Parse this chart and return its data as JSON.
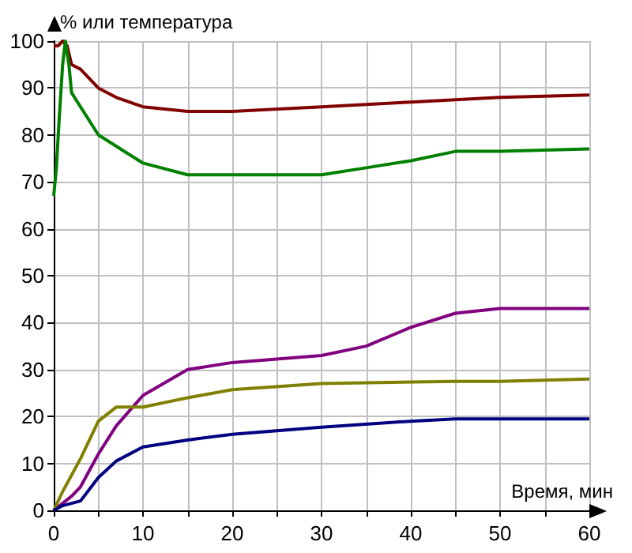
{
  "chart_data": {
    "type": "line",
    "xlabel": "Время, мин",
    "ylabel": "% или температура",
    "xlim": [
      0,
      60
    ],
    "ylim": [
      0,
      100
    ],
    "xticks": [
      0,
      {
        "value": 5,
        "label": null
      },
      10,
      {
        "value": 15,
        "label": null
      },
      20,
      {
        "value": 25,
        "label": null
      },
      30,
      {
        "value": 35,
        "label": null
      },
      40,
      {
        "value": 45,
        "label": null
      },
      50,
      {
        "value": 55,
        "label": null
      },
      60
    ],
    "yticks": [
      0,
      10,
      20,
      30,
      40,
      50,
      60,
      70,
      80,
      90,
      100
    ],
    "grid": true,
    "marker": "none",
    "line_style": "solid",
    "series": [
      {
        "color": "#800000",
        "x": [
          0,
          0.5,
          1,
          1.5,
          2,
          3,
          5,
          7,
          10,
          15,
          20,
          30,
          40,
          50,
          60
        ],
        "values": [
          99,
          99,
          100,
          99,
          95,
          94,
          90,
          88,
          86,
          85,
          85,
          86,
          87,
          88,
          88.5
        ]
      },
      {
        "color": "#008000",
        "x": [
          0,
          0.3,
          0.6,
          1,
          1.3,
          1.7,
          2,
          5,
          10,
          15,
          30,
          35,
          40,
          45,
          50,
          60
        ],
        "values": [
          67,
          73,
          83,
          95,
          100,
          95,
          89,
          80,
          74,
          71.5,
          71.5,
          73,
          74.5,
          76.5,
          76.5,
          77
        ]
      },
      {
        "color": "#800080",
        "x": [
          0,
          2,
          3,
          5,
          7,
          10,
          15,
          20,
          30,
          35,
          40,
          45,
          50,
          60
        ],
        "values": [
          0,
          3,
          5,
          12,
          18,
          24.5,
          30,
          31.5,
          33,
          35,
          39,
          42,
          43,
          43
        ]
      },
      {
        "color": "#808000",
        "x": [
          0,
          1,
          3,
          5,
          7,
          10,
          15,
          20,
          30,
          45,
          50,
          60
        ],
        "values": [
          0,
          4,
          11,
          19,
          22,
          22,
          24,
          25.7,
          27,
          27.5,
          27.5,
          28
        ]
      },
      {
        "color": "#000080",
        "x": [
          0,
          1,
          3,
          5,
          7,
          10,
          15,
          20,
          30,
          40,
          45,
          60
        ],
        "values": [
          0,
          1,
          2,
          7,
          10.5,
          13.5,
          15,
          16.2,
          17.7,
          19,
          19.5,
          19.5
        ]
      }
    ]
  }
}
